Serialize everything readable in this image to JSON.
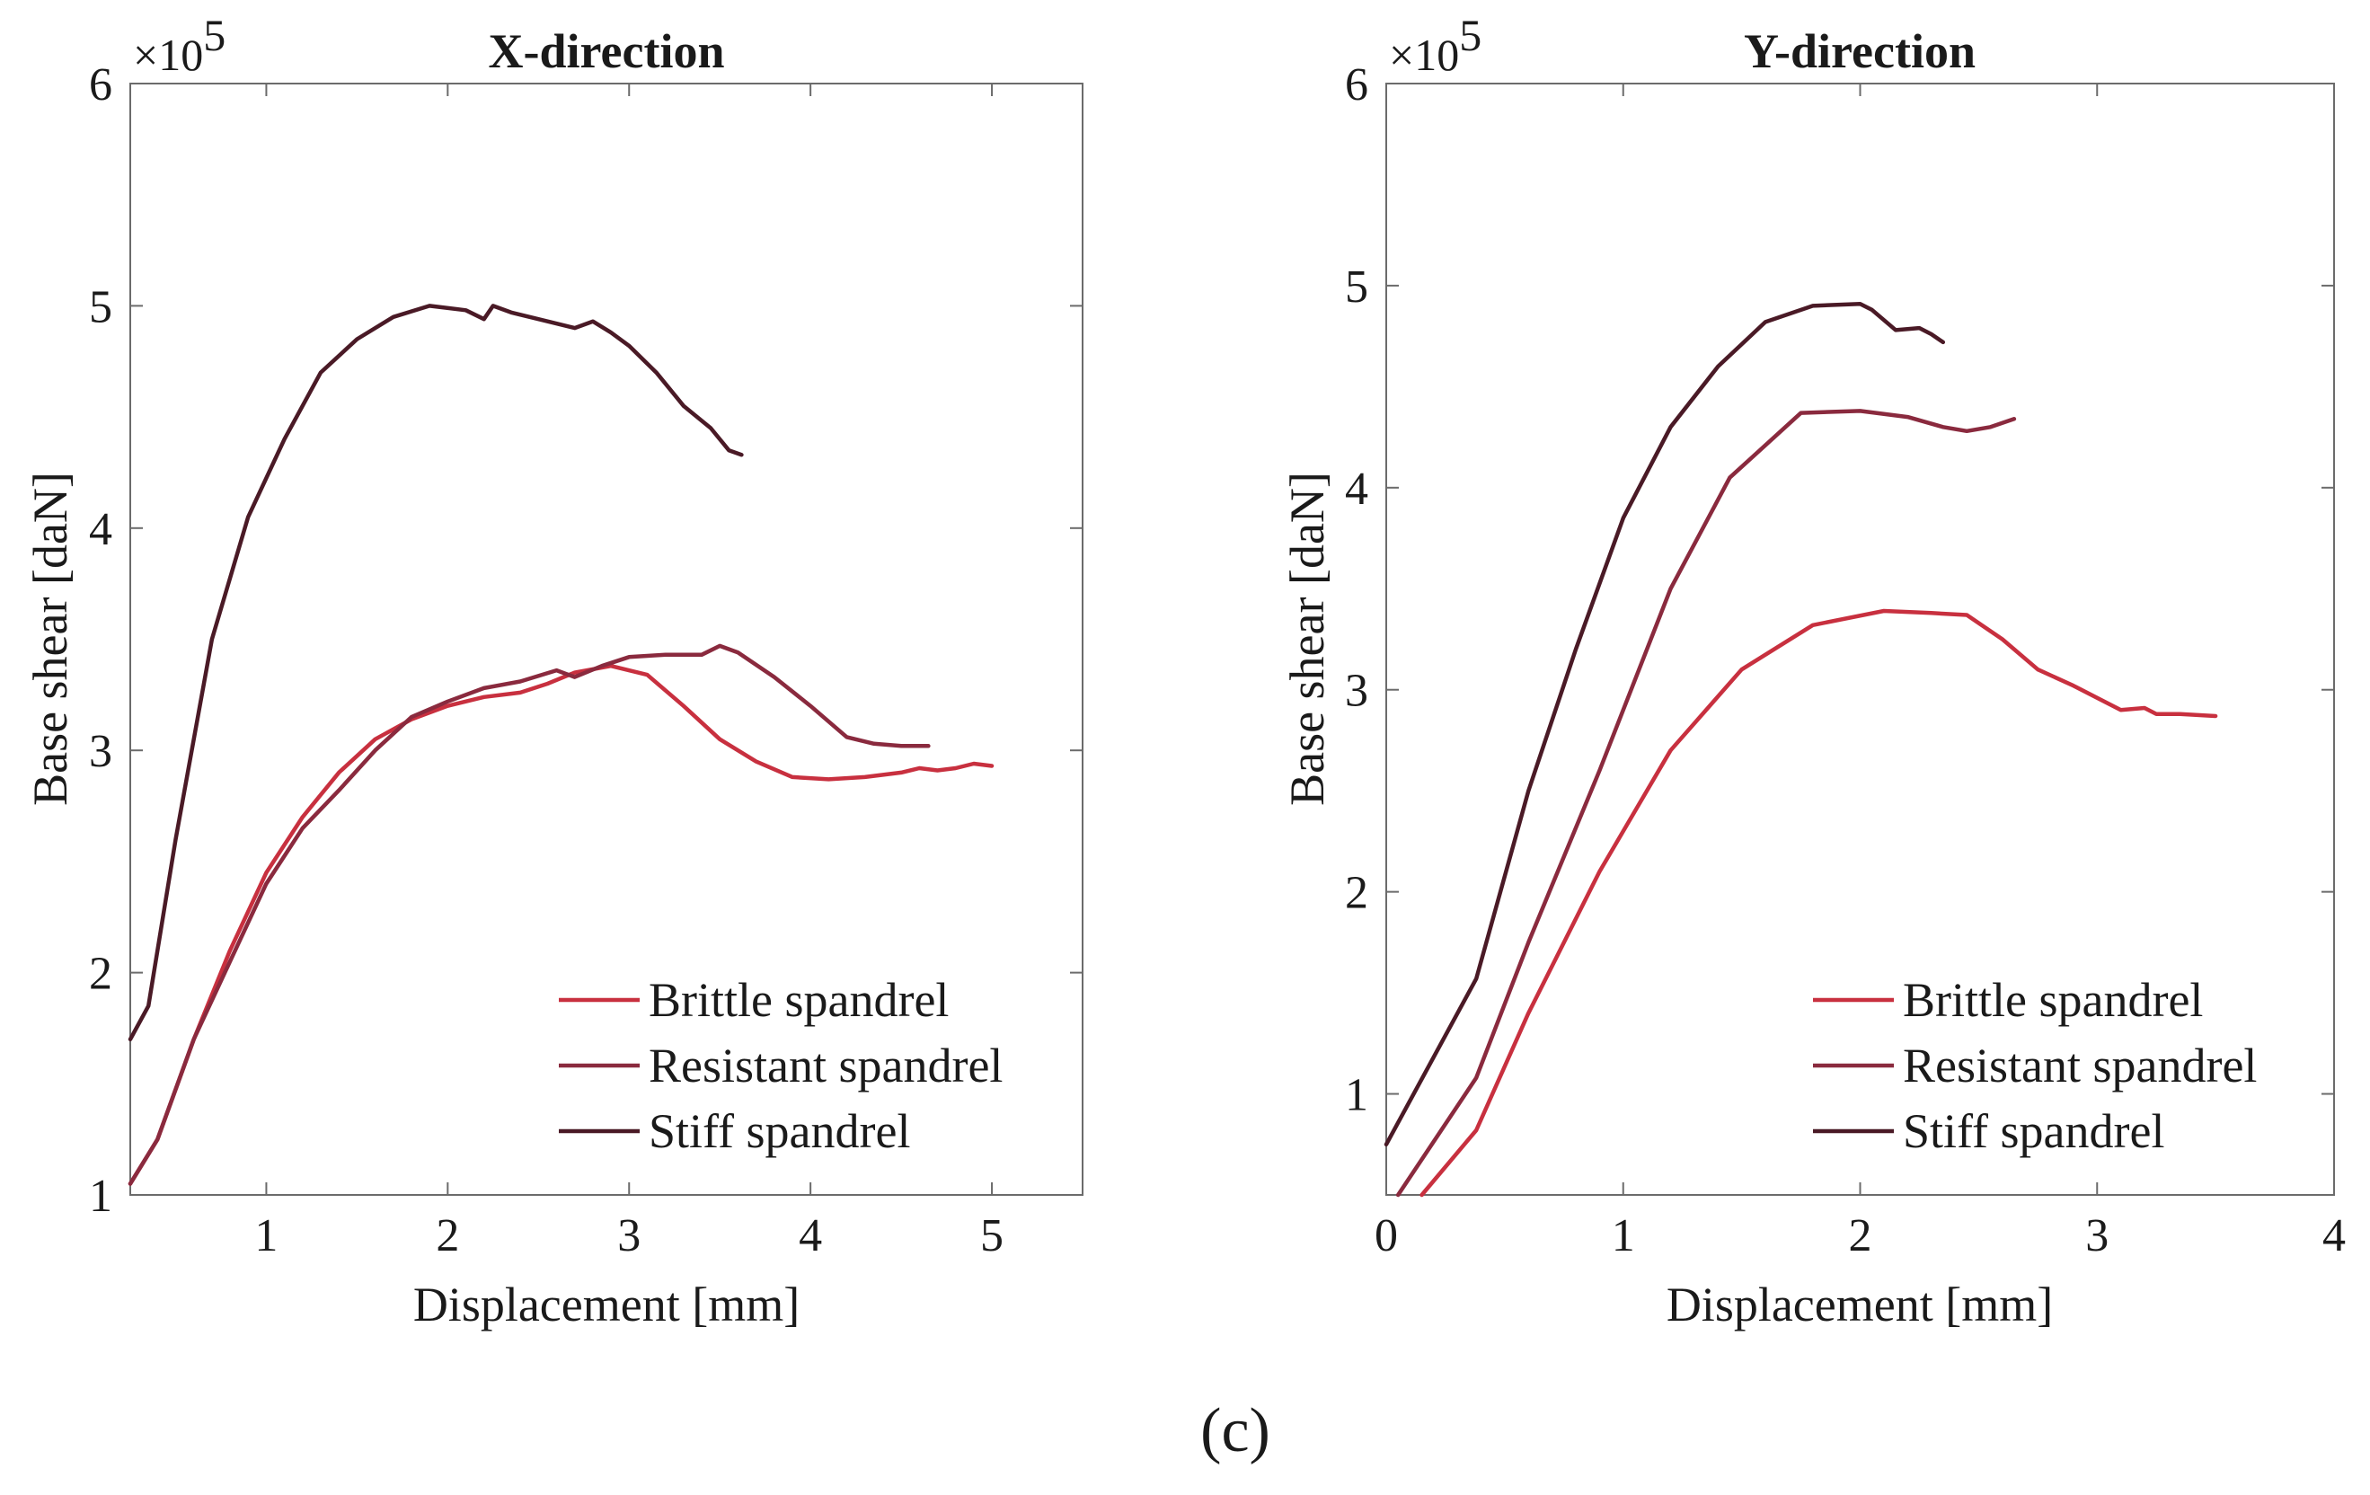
{
  "chart_data": [
    {
      "type": "line",
      "title": "X-direction",
      "xlabel": "Displacement [mm]",
      "ylabel": "Base shear [daN]",
      "y_multiplier_label": "×10",
      "y_multiplier_exponent": "5",
      "xlim": [
        0.25,
        5.5
      ],
      "ylim": [
        1,
        6
      ],
      "xticks": [
        1,
        2,
        3,
        4,
        5
      ],
      "xtick_labels": [
        "1",
        "2",
        "3",
        "4",
        "5"
      ],
      "yticks": [
        1,
        2,
        3,
        4,
        5,
        6
      ],
      "ytick_labels": [
        "1",
        "2",
        "3",
        "4",
        "5",
        "6"
      ],
      "grid": false,
      "legend_position": "bottom-right",
      "series": [
        {
          "name": "Brittle spandrel",
          "color": "#c8303f",
          "x": [
            0.25,
            0.4,
            0.6,
            0.8,
            1.0,
            1.2,
            1.4,
            1.6,
            1.8,
            2.0,
            2.2,
            2.4,
            2.55,
            2.7,
            2.9,
            3.1,
            3.3,
            3.5,
            3.7,
            3.9,
            4.1,
            4.3,
            4.5,
            4.6,
            4.7,
            4.8,
            4.9,
            5.0
          ],
          "y": [
            1.05,
            1.25,
            1.7,
            2.1,
            2.45,
            2.7,
            2.9,
            3.05,
            3.14,
            3.2,
            3.24,
            3.26,
            3.3,
            3.35,
            3.38,
            3.34,
            3.2,
            3.05,
            2.95,
            2.88,
            2.87,
            2.88,
            2.9,
            2.92,
            2.91,
            2.92,
            2.94,
            2.93
          ]
        },
        {
          "name": "Resistant spandrel",
          "color": "#8a2a3e",
          "x": [
            0.25,
            0.4,
            0.6,
            0.8,
            1.0,
            1.2,
            1.4,
            1.6,
            1.8,
            2.0,
            2.2,
            2.4,
            2.6,
            2.7,
            2.85,
            3.0,
            3.2,
            3.4,
            3.5,
            3.6,
            3.8,
            4.0,
            4.2,
            4.35,
            4.5,
            4.65
          ],
          "y": [
            1.05,
            1.25,
            1.7,
            2.05,
            2.4,
            2.65,
            2.82,
            3.0,
            3.15,
            3.22,
            3.28,
            3.31,
            3.36,
            3.33,
            3.38,
            3.42,
            3.43,
            3.43,
            3.47,
            3.44,
            3.33,
            3.2,
            3.06,
            3.03,
            3.02,
            3.02
          ]
        },
        {
          "name": "Stiff spandrel",
          "color": "#4a1a26",
          "x": [
            0.25,
            0.35,
            0.5,
            0.7,
            0.9,
            1.1,
            1.3,
            1.5,
            1.7,
            1.9,
            2.1,
            2.2,
            2.25,
            2.35,
            2.5,
            2.7,
            2.8,
            2.9,
            3.0,
            3.15,
            3.3,
            3.45,
            3.55,
            3.62
          ],
          "y": [
            1.7,
            1.85,
            2.6,
            3.5,
            4.05,
            4.4,
            4.7,
            4.85,
            4.95,
            5.0,
            4.98,
            4.94,
            5.0,
            4.97,
            4.94,
            4.9,
            4.93,
            4.88,
            4.82,
            4.7,
            4.55,
            4.45,
            4.35,
            4.33
          ]
        }
      ]
    },
    {
      "type": "line",
      "title": "Y-direction",
      "xlabel": "Displacement [mm]",
      "ylabel": "Base shear [daN]",
      "y_multiplier_label": "×10",
      "y_multiplier_exponent": "5",
      "xlim": [
        0,
        4
      ],
      "ylim": [
        0.5,
        6
      ],
      "xticks": [
        0,
        1,
        2,
        3,
        4
      ],
      "xtick_labels": [
        "0",
        "1",
        "2",
        "3",
        "4"
      ],
      "yticks": [
        1,
        2,
        3,
        4,
        5,
        6
      ],
      "ytick_labels": [
        "1",
        "2",
        "3",
        "4",
        "5",
        "6"
      ],
      "grid": false,
      "legend_position": "bottom-right",
      "series": [
        {
          "name": "Brittle spandrel",
          "color": "#c8303f",
          "x": [
            0.15,
            0.38,
            0.6,
            0.9,
            1.2,
            1.5,
            1.8,
            2.1,
            2.3,
            2.45,
            2.6,
            2.75,
            2.9,
            3.1,
            3.2,
            3.25,
            3.35,
            3.5
          ],
          "y": [
            0.5,
            0.82,
            1.4,
            2.1,
            2.7,
            3.1,
            3.32,
            3.39,
            3.38,
            3.37,
            3.25,
            3.1,
            3.02,
            2.9,
            2.91,
            2.88,
            2.88,
            2.87
          ]
        },
        {
          "name": "Resistant spandrel",
          "color": "#8a2a3e",
          "x": [
            0.05,
            0.38,
            0.6,
            0.9,
            1.2,
            1.45,
            1.75,
            2.0,
            2.2,
            2.35,
            2.45,
            2.55,
            2.65
          ],
          "y": [
            0.5,
            1.08,
            1.75,
            2.6,
            3.5,
            4.05,
            4.37,
            4.38,
            4.35,
            4.3,
            4.28,
            4.3,
            4.34
          ]
        },
        {
          "name": "Stiff spandrel",
          "color": "#4a1a26",
          "x": [
            0.0,
            0.38,
            0.6,
            0.8,
            1.0,
            1.2,
            1.4,
            1.6,
            1.8,
            2.0,
            2.05,
            2.15,
            2.25,
            2.3,
            2.35
          ],
          "y": [
            0.75,
            1.57,
            2.5,
            3.2,
            3.85,
            4.3,
            4.6,
            4.82,
            4.9,
            4.91,
            4.88,
            4.78,
            4.79,
            4.76,
            4.72
          ]
        }
      ]
    }
  ],
  "caption": "(c)"
}
